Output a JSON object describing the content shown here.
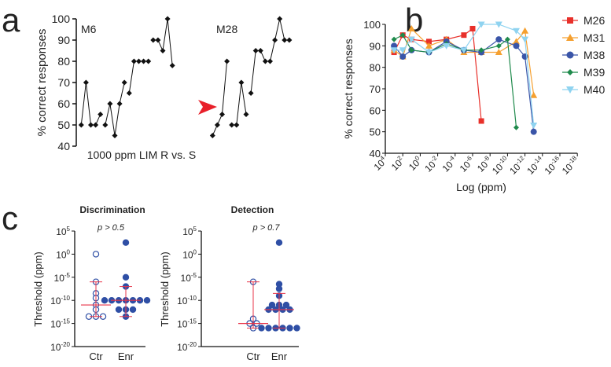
{
  "panels": {
    "a": "a",
    "b": "b",
    "c": "c"
  },
  "chart_data": [
    {
      "panel": "a",
      "type": "line",
      "ylabel": "% correct responses",
      "xlabel": "1000 ppm LIM R vs. S",
      "ylim": [
        40,
        100
      ],
      "yticks": [
        40,
        50,
        60,
        70,
        80,
        90,
        100
      ],
      "series": [
        {
          "name": "M6",
          "segments": [
            [
              50,
              70,
              50,
              50,
              55
            ],
            [
              50,
              60,
              45,
              60,
              70
            ],
            [
              65,
              80,
              80,
              80,
              80
            ],
            [
              90,
              90,
              85,
              100,
              78
            ]
          ]
        },
        {
          "name": "M28",
          "segments": [
            [
              45,
              50,
              55,
              80
            ],
            [
              50,
              50,
              70,
              55
            ],
            [
              65,
              85,
              85,
              80,
              80,
              90,
              100,
              90,
              90
            ]
          ]
        }
      ],
      "annotation": "red-arrowhead",
      "arrow_color": "#e8202a"
    },
    {
      "panel": "b",
      "type": "line",
      "ylabel": "% correct responses",
      "xlabel": "Log (ppm)",
      "ylim": [
        40,
        100
      ],
      "yticks": [
        40,
        50,
        60,
        70,
        80,
        90,
        100
      ],
      "xscale": "log",
      "xticks_exp": [
        4,
        2,
        0,
        -2,
        -4,
        -6,
        -8,
        -10,
        -12,
        -14,
        -16,
        -18
      ],
      "legend": "right",
      "series": [
        {
          "name": "M26",
          "color": "#e8302a",
          "marker": "square",
          "x_exp": [
            3,
            2,
            1,
            -1,
            -3,
            -5,
            -6,
            -7
          ],
          "values": [
            87,
            95,
            93,
            92,
            93,
            95,
            98,
            55
          ]
        },
        {
          "name": "M31",
          "color": "#f5a030",
          "marker": "triangle-up",
          "x_exp": [
            3,
            2,
            1,
            -1,
            -3,
            -5,
            -7,
            -9,
            -11,
            -12,
            -13
          ],
          "values": [
            88,
            85,
            98,
            90,
            93,
            87,
            87,
            87,
            92,
            97,
            67
          ]
        },
        {
          "name": "M38",
          "color": "#3a55a8",
          "marker": "circle",
          "x_exp": [
            3,
            2,
            1,
            -1,
            -3,
            -5,
            -7,
            -9,
            -11,
            -12,
            -13
          ],
          "values": [
            90,
            85,
            88,
            87,
            92,
            88,
            87,
            93,
            90,
            85,
            50
          ]
        },
        {
          "name": "M39",
          "color": "#1f8a4c",
          "marker": "diamond",
          "x_exp": [
            3,
            2,
            1,
            -1,
            -3,
            -5,
            -7,
            -9,
            -10,
            -11
          ],
          "values": [
            93,
            95,
            88,
            87,
            91,
            88,
            88,
            90,
            93,
            52
          ]
        },
        {
          "name": "M40",
          "color": "#8fd3f0",
          "marker": "triangle-down",
          "x_exp": [
            3,
            2,
            1,
            -1,
            -3,
            -5,
            -7,
            -9,
            -11,
            -12,
            -13
          ],
          "values": [
            88,
            88,
            93,
            87,
            90,
            88,
            100,
            100,
            97,
            93,
            53
          ]
        }
      ]
    },
    {
      "panel": "c",
      "type": "scatter",
      "title": "Discrimination",
      "annotation": "p > 0.5",
      "ylabel": "Threshold (ppm)",
      "yscale": "log",
      "yticks_exp": [
        5,
        0,
        -5,
        -10,
        -15,
        -20
      ],
      "categories": [
        "Ctr",
        "Enr"
      ],
      "groups": [
        {
          "name": "Ctr",
          "filled": false,
          "values_exp": [
            0,
            -6,
            -8.5,
            -9.5,
            -11,
            -12,
            -13.5,
            -13.5,
            -13.5
          ],
          "median_exp": -11,
          "range_exp": [
            -13.5,
            -6
          ]
        },
        {
          "name": "Enr",
          "filled": true,
          "values_exp": [
            2.5,
            -5,
            -7,
            -10,
            -10,
            -10,
            -10,
            -10,
            -10,
            -10,
            -12,
            -12,
            -12,
            -13.5
          ],
          "median_exp": -10,
          "range_exp": [
            -13.5,
            -7
          ]
        }
      ]
    },
    {
      "panel": "c",
      "type": "scatter",
      "title": "Detection",
      "annotation": "p > 0.7",
      "ylabel": "Threshold (ppm)",
      "yscale": "log",
      "yticks_exp": [
        5,
        0,
        -5,
        -10,
        -15,
        -20
      ],
      "categories": [
        "Ctr",
        "Enr"
      ],
      "groups": [
        {
          "name": "Ctr",
          "filled": false,
          "values_exp": [
            -6,
            -14,
            -15,
            -15,
            -16
          ],
          "median_exp": -15,
          "range_exp": [
            -16,
            -6
          ]
        },
        {
          "name": "Enr",
          "filled": true,
          "values_exp": [
            2.5,
            -6.5,
            -7.5,
            -9,
            -11,
            -11,
            -11,
            -12,
            -12,
            -12,
            -12,
            -16,
            -16,
            -16,
            -16,
            -16,
            -16
          ],
          "median_exp": -12,
          "range_exp": [
            -16,
            -8.5
          ]
        }
      ]
    }
  ],
  "colors": {
    "dot": "#2f4fa5",
    "bar": "#e8354a"
  }
}
